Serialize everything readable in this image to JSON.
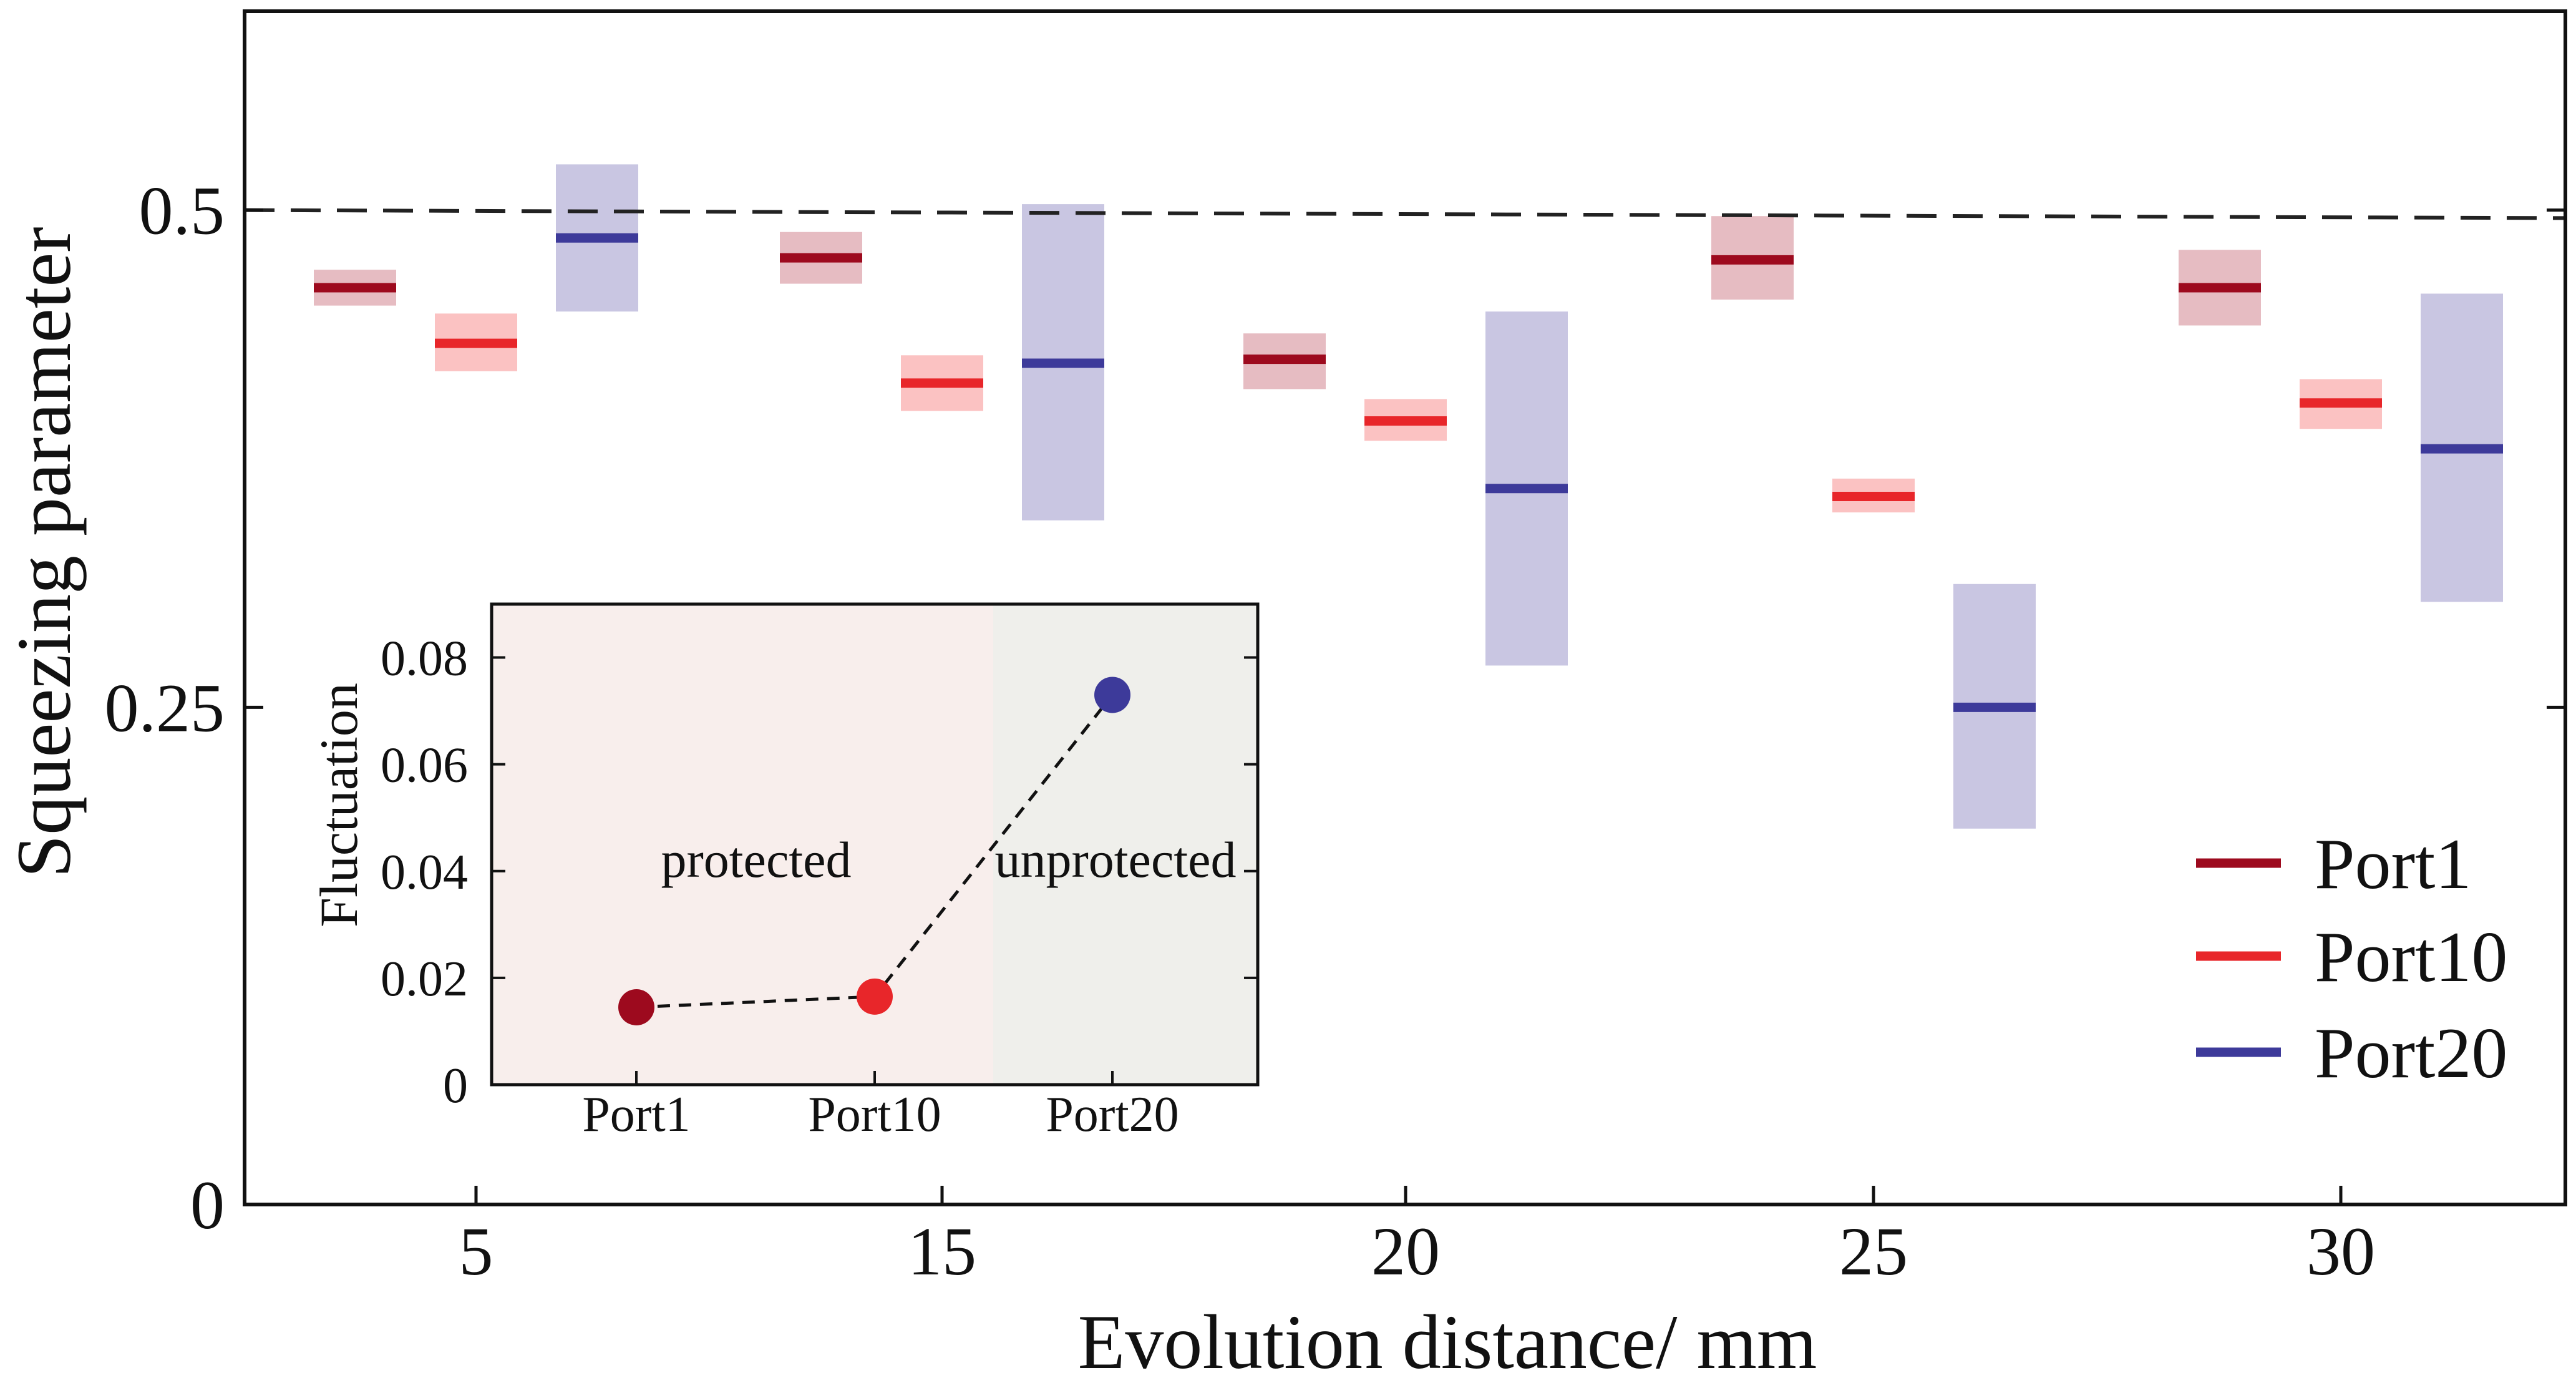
{
  "chart_data": [
    {
      "type": "bar",
      "subtype": "floating-range",
      "xlabel": "Evolution distance/ mm",
      "ylabel": "Squeezing parameter",
      "x_ticks": [
        "5",
        "15",
        "20",
        "25",
        "30"
      ],
      "y_ticks": [
        {
          "value": 0,
          "label": "0"
        },
        {
          "value": 0.25,
          "label": "0.25"
        },
        {
          "value": 0.5,
          "label": "0.5"
        }
      ],
      "ylim": [
        0,
        0.6
      ],
      "categories": [
        "5",
        "15",
        "20",
        "25",
        "30"
      ],
      "reference_line": {
        "value": 0.5,
        "value_end": 0.496,
        "style": "dashed"
      },
      "legend_position": "lower-right",
      "series": [
        {
          "name": "Port1",
          "color": "#9d0a1e",
          "band_color": "#e6bcc2",
          "mean": [
            0.461,
            0.476,
            0.425,
            0.475,
            0.461
          ],
          "low": [
            0.452,
            0.463,
            0.41,
            0.455,
            0.442
          ],
          "high": [
            0.47,
            0.489,
            0.438,
            0.497,
            0.48
          ]
        },
        {
          "name": "Port10",
          "color": "#e8262a",
          "band_color": "#fbc2c2",
          "mean": [
            0.433,
            0.413,
            0.394,
            0.356,
            0.403
          ],
          "low": [
            0.419,
            0.399,
            0.384,
            0.348,
            0.39
          ],
          "high": [
            0.448,
            0.427,
            0.405,
            0.365,
            0.415
          ]
        },
        {
          "name": "Port20",
          "color": "#3d3a9a",
          "band_color": "#c9c6e2",
          "mean": [
            0.486,
            0.423,
            0.36,
            0.25,
            0.38
          ],
          "low": [
            0.449,
            0.344,
            0.271,
            0.189,
            0.303
          ],
          "high": [
            0.523,
            0.503,
            0.449,
            0.312,
            0.458
          ]
        }
      ]
    },
    {
      "type": "scatter",
      "placement": "inset",
      "ylabel": "Fluctuation",
      "categories": [
        "Port1",
        "Port10",
        "Port20"
      ],
      "values": [
        0.0145,
        0.0165,
        0.073
      ],
      "colors": [
        "#9d0a1e",
        "#e8262a",
        "#3d3a9a"
      ],
      "ylim": [
        0,
        0.09
      ],
      "y_ticks": [
        {
          "value": 0,
          "label": "0"
        },
        {
          "value": 0.02,
          "label": "0.02"
        },
        {
          "value": 0.04,
          "label": "0.04"
        },
        {
          "value": 0.06,
          "label": "0.06"
        },
        {
          "value": 0.08,
          "label": "0.08"
        }
      ],
      "regions": [
        {
          "label": "protected",
          "categories": [
            "Port1",
            "Port10"
          ],
          "color": "#f8eeec"
        },
        {
          "label": "unprotected",
          "categories": [
            "Port20"
          ],
          "color": "#efefeb"
        }
      ]
    }
  ]
}
